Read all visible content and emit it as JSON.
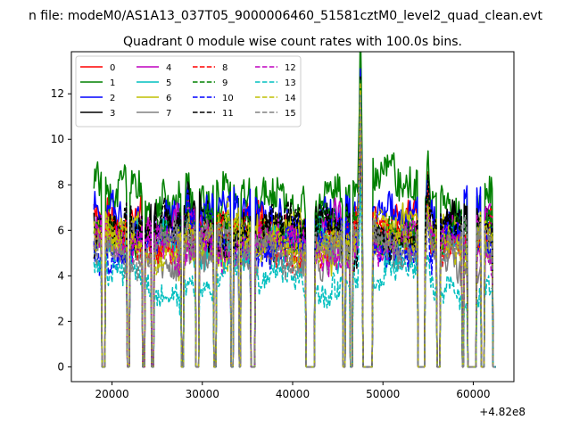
{
  "chart_data": {
    "type": "line",
    "suptitle": "n file: modeM0/AS1A13_037T05_9000006460_51581cztM0_level2_quad_clean.evt",
    "title": "Quadrant 0 module wise count rates with 100.0s bins.",
    "xlabel": "",
    "ylabel": "",
    "x_offset_label": "+4.82e8",
    "xlim": [
      15500,
      64500
    ],
    "ylim": [
      -0.65,
      13.85
    ],
    "x_ticks": [
      20000,
      30000,
      40000,
      50000,
      60000
    ],
    "x_tick_labels": [
      "20000",
      "30000",
      "40000",
      "50000",
      "60000"
    ],
    "y_ticks": [
      0,
      2,
      4,
      6,
      8,
      10,
      12
    ],
    "y_tick_labels": [
      "0",
      "2",
      "4",
      "6",
      "8",
      "10",
      "12"
    ],
    "grid": false,
    "legend_position": "top-left",
    "x_range": [
      18000,
      62500
    ],
    "bin_seconds": 100,
    "gaps": [
      [
        18900,
        19200
      ],
      [
        21700,
        21900
      ],
      [
        23400,
        23600
      ],
      [
        24400,
        24600
      ],
      [
        27700,
        27900
      ],
      [
        29300,
        29600
      ],
      [
        31300,
        31500
      ],
      [
        33200,
        33400
      ],
      [
        34100,
        34200
      ],
      [
        35400,
        35800
      ],
      [
        41500,
        42400
      ],
      [
        45600,
        45800
      ],
      [
        46400,
        46600
      ],
      [
        47800,
        48800
      ],
      [
        53900,
        54600
      ],
      [
        56000,
        56300
      ],
      [
        58800,
        58900
      ],
      [
        59400,
        60300
      ],
      [
        60900,
        61200
      ],
      [
        62200,
        62500
      ]
    ],
    "spikes": [
      {
        "x": 47500,
        "height": 6.5
      },
      {
        "x": 55000,
        "height": 2.0
      },
      {
        "x": 61000,
        "height": 2.5
      },
      {
        "x": 28400,
        "height": 1.2
      }
    ],
    "series": [
      {
        "name": "0",
        "color": "#ff0000",
        "dash": "solid",
        "mean": 6.0,
        "noise": 0.6
      },
      {
        "name": "1",
        "color": "#008000",
        "dash": "solid",
        "mean": 7.6,
        "noise": 0.7
      },
      {
        "name": "2",
        "color": "#0000ff",
        "dash": "solid",
        "mean": 6.7,
        "noise": 0.7
      },
      {
        "name": "3",
        "color": "#000000",
        "dash": "solid",
        "mean": 6.2,
        "noise": 0.6
      },
      {
        "name": "4",
        "color": "#bf00bf",
        "dash": "solid",
        "mean": 5.8,
        "noise": 0.6
      },
      {
        "name": "5",
        "color": "#00bfbf",
        "dash": "solid",
        "mean": 5.4,
        "noise": 0.6
      },
      {
        "name": "6",
        "color": "#bfbf00",
        "dash": "solid",
        "mean": 5.6,
        "noise": 0.6
      },
      {
        "name": "7",
        "color": "#808080",
        "dash": "solid",
        "mean": 5.0,
        "noise": 0.6
      },
      {
        "name": "8",
        "color": "#ff0000",
        "dash": "dashed",
        "mean": 5.7,
        "noise": 0.6
      },
      {
        "name": "9",
        "color": "#008000",
        "dash": "dashed",
        "mean": 6.0,
        "noise": 0.6
      },
      {
        "name": "10",
        "color": "#0000ff",
        "dash": "dashed",
        "mean": 5.5,
        "noise": 0.6
      },
      {
        "name": "11",
        "color": "#000000",
        "dash": "dashed",
        "mean": 5.9,
        "noise": 0.6
      },
      {
        "name": "12",
        "color": "#bf00bf",
        "dash": "dashed",
        "mean": 5.3,
        "noise": 0.6
      },
      {
        "name": "13",
        "color": "#00bfbf",
        "dash": "dashed",
        "mean": 3.8,
        "noise": 0.5
      },
      {
        "name": "14",
        "color": "#bfbf00",
        "dash": "dashed",
        "mean": 5.6,
        "noise": 0.6
      },
      {
        "name": "15",
        "color": "#808080",
        "dash": "dashed",
        "mean": 5.4,
        "noise": 0.6
      }
    ]
  }
}
